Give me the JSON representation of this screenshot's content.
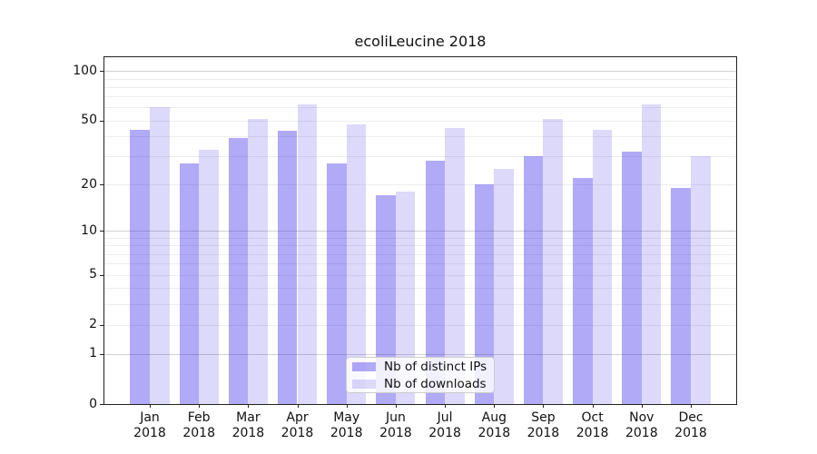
{
  "title": "ecoliLeucine 2018",
  "legend": {
    "items": [
      {
        "label": "Nb of distinct IPs",
        "color": "#2414e8",
        "opacity": 0.36,
        "rendered_hex": "#a8a5f5"
      },
      {
        "label": "Nb of downloads",
        "color": "#2414e8",
        "opacity": 0.16,
        "rendered_hex": "#dcd9fa"
      }
    ]
  },
  "y_axis": {
    "scale": "log1p",
    "tick_values": [
      0,
      1,
      2,
      5,
      10,
      20,
      50,
      100
    ],
    "tick_labels": [
      "0",
      "1",
      "2",
      "5",
      "10",
      "20",
      "50",
      "100"
    ],
    "major_gridlines": [
      1,
      10,
      100
    ],
    "minor_gridlines": [
      2,
      3,
      4,
      5,
      6,
      7,
      8,
      9,
      20,
      30,
      40,
      50,
      60,
      70,
      80,
      90
    ],
    "max_value": 121
  },
  "x_axis": {
    "categories": [
      {
        "month": "Jan",
        "year": "2018"
      },
      {
        "month": "Feb",
        "year": "2018"
      },
      {
        "month": "Mar",
        "year": "2018"
      },
      {
        "month": "Apr",
        "year": "2018"
      },
      {
        "month": "May",
        "year": "2018"
      },
      {
        "month": "Jun",
        "year": "2018"
      },
      {
        "month": "Jul",
        "year": "2018"
      },
      {
        "month": "Aug",
        "year": "2018"
      },
      {
        "month": "Sep",
        "year": "2018"
      },
      {
        "month": "Oct",
        "year": "2018"
      },
      {
        "month": "Nov",
        "year": "2018"
      },
      {
        "month": "Dec",
        "year": "2018"
      }
    ]
  },
  "chart_data": {
    "type": "bar",
    "title": "ecoliLeucine 2018",
    "categories": [
      "Jan 2018",
      "Feb 2018",
      "Mar 2018",
      "Apr 2018",
      "May 2018",
      "Jun 2018",
      "Jul 2018",
      "Aug 2018",
      "Sep 2018",
      "Oct 2018",
      "Nov 2018",
      "Dec 2018"
    ],
    "series": [
      {
        "name": "Nb of distinct IPs",
        "values": [
          44,
          27,
          39,
          43,
          27,
          17,
          28,
          20,
          30,
          22,
          32,
          19
        ]
      },
      {
        "name": "Nb of downloads",
        "values": [
          60,
          33,
          51,
          63,
          47,
          18,
          45,
          25,
          51,
          44,
          63,
          30
        ]
      }
    ],
    "xlabel": "",
    "ylabel": "",
    "yscale": "log1p",
    "ylim": [
      0,
      121
    ],
    "yticks": [
      0,
      1,
      2,
      5,
      10,
      20,
      50,
      100
    ],
    "grid": "both",
    "legend_position": "lower-center"
  }
}
